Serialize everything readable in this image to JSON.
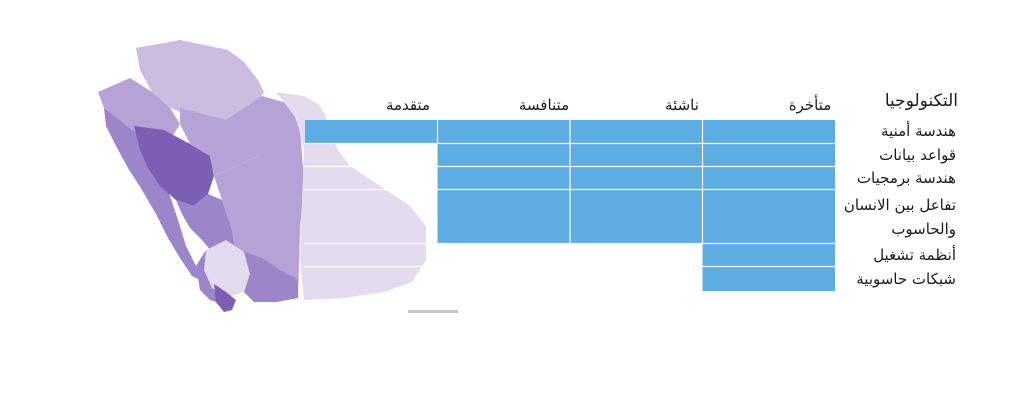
{
  "chart_data": {
    "type": "bar",
    "title": "",
    "levels_header": "التكنولوجيا",
    "levels": [
      "متأخرة",
      "ناشئة",
      "متنافسة",
      "متقدمة"
    ],
    "categories": [
      "هندسة أمنية",
      "قواعد بيانات",
      "هندسة برمجيات",
      "تفاعل بين الانسان والحاسوب",
      "أنظمة تشغيل",
      "شبكات حاسوبية"
    ],
    "category_lines": [
      [
        "هندسة أمنية"
      ],
      [
        "قواعد بيانات"
      ],
      [
        "هندسة برمجيات"
      ],
      [
        "تفاعل بين الانسان",
        "والحاسوب"
      ],
      [
        "أنظمة تشغيل"
      ],
      [
        "شبكات حاسوبية"
      ]
    ],
    "values": [
      4,
      3,
      3,
      3,
      1,
      1
    ],
    "xlim": [
      0,
      4
    ],
    "bar_color": "#5DADE2",
    "grid": true,
    "orientation": "horizontal, right-to-left"
  },
  "background_map": {
    "subject": "Saudi Arabia regions map",
    "colors": [
      "#e4dcee",
      "#cbbce0",
      "#b6a2d6",
      "#9c85c8",
      "#7a5fb5"
    ]
  }
}
